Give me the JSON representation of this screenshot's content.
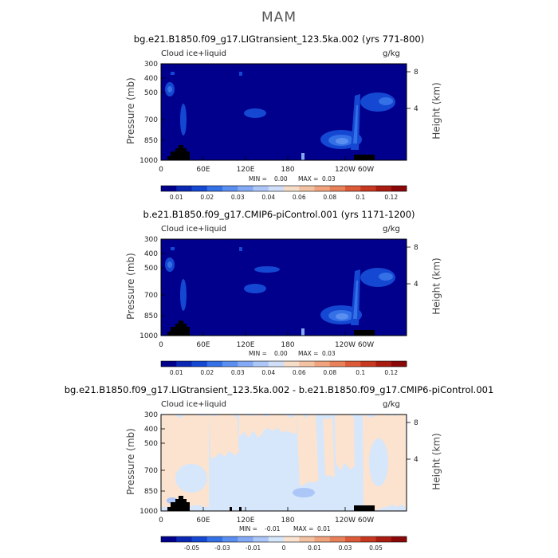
{
  "figure": {
    "title": "MAM"
  },
  "colors": {
    "background": "#00008c",
    "background_diff": "#d6e6fb",
    "land": "#000000"
  },
  "chart_data": [
    {
      "type": "heatmap",
      "title": "bg.e21.B1850.f09_g17.LIGtransient_123.5ka.002 (yrs 771-800)",
      "field_label": "Cloud ice+liquid",
      "units": "g/kg",
      "xlabel": "",
      "ylabel": "Pressure (mb)",
      "ylabel_right": "Height (km)",
      "x_ticks": [
        "0",
        "60E",
        "120E",
        "180",
        "120W",
        "60W"
      ],
      "y_ticks": [
        "300",
        "400",
        "500",
        "700",
        "850",
        "1000"
      ],
      "y_right_ticks": [
        "8",
        "4"
      ],
      "min_label": "MIN =",
      "min_value": "0.00",
      "max_label": "MAX =",
      "max_value": "0.03",
      "colorbar_labels": [
        "0.01",
        "0.02",
        "0.03",
        "0.04",
        "0.06",
        "0.08",
        "0.1",
        "0.12"
      ],
      "colorbar_colors": [
        "#00008c",
        "#0a28b4",
        "#1448d2",
        "#3470e6",
        "#5a8ef0",
        "#85aaf5",
        "#acc6f8",
        "#d0defa",
        "#f5ddc8",
        "#f2c2a2",
        "#f0a37c",
        "#e8805a",
        "#dd5a38",
        "#c83820",
        "#aa1c10",
        "#8c0808"
      ],
      "features": [
        {
          "name": "lower-troposphere-max-east-pacific",
          "lon": -130,
          "p": 860,
          "value": 0.03
        },
        {
          "name": "upper-cloud-east-pacific",
          "lon": -75,
          "p": 430,
          "value": 0.02
        },
        {
          "name": "mid-cloud-africa",
          "lon": 15,
          "p": 520,
          "value": 0.01
        }
      ]
    },
    {
      "type": "heatmap",
      "title": "b.e21.B1850.f09_g17.CMIP6-piControl.001 (yrs 1171-1200)",
      "field_label": "Cloud ice+liquid",
      "units": "g/kg",
      "xlabel": "",
      "ylabel": "Pressure (mb)",
      "ylabel_right": "Height (km)",
      "x_ticks": [
        "0",
        "60E",
        "120E",
        "180",
        "120W",
        "60W"
      ],
      "y_ticks": [
        "300",
        "400",
        "500",
        "700",
        "850",
        "1000"
      ],
      "y_right_ticks": [
        "8",
        "4"
      ],
      "min_label": "MIN =",
      "min_value": "0.00",
      "max_label": "MAX =",
      "max_value": "0.03",
      "colorbar_labels": [
        "0.01",
        "0.02",
        "0.03",
        "0.04",
        "0.06",
        "0.08",
        "0.1",
        "0.12"
      ],
      "colorbar_colors": [
        "#00008c",
        "#0a28b4",
        "#1448d2",
        "#3470e6",
        "#5a8ef0",
        "#85aaf5",
        "#acc6f8",
        "#d0defa",
        "#f5ddc8",
        "#f2c2a2",
        "#f0a37c",
        "#e8805a",
        "#dd5a38",
        "#c83820",
        "#aa1c10",
        "#8c0808"
      ],
      "features": [
        {
          "name": "lower-troposphere-max-east-pacific",
          "lon": -130,
          "p": 860,
          "value": 0.03
        },
        {
          "name": "upper-cloud-east-pacific",
          "lon": -75,
          "p": 430,
          "value": 0.02
        },
        {
          "name": "mid-cloud-africa",
          "lon": 15,
          "p": 520,
          "value": 0.01
        }
      ]
    },
    {
      "type": "heatmap",
      "title": "bg.e21.B1850.f09_g17.LIGtransient_123.5ka.002 - b.e21.B1850.f09_g17.CMIP6-piControl.001",
      "field_label": "Cloud ice+liquid",
      "units": "g/kg",
      "xlabel": "",
      "ylabel": "Pressure (mb)",
      "ylabel_right": "Height (km)",
      "x_ticks": [
        "0",
        "60E",
        "120E",
        "180",
        "120W",
        "60W"
      ],
      "y_ticks": [
        "300",
        "400",
        "500",
        "700",
        "850",
        "1000"
      ],
      "y_right_ticks": [
        "8",
        "4"
      ],
      "min_label": "MIN =",
      "min_value": "-0.01",
      "max_label": "MAX =",
      "max_value": "0.01",
      "colorbar_labels": [
        "-0.05",
        "-0.03",
        "-0.01",
        "0",
        "0.01",
        "0.03",
        "0.05"
      ],
      "colorbar_colors": [
        "#00008c",
        "#0a28b4",
        "#1448d2",
        "#3470e6",
        "#5a8ef0",
        "#85aaf5",
        "#acc6f8",
        "#d6e6fb",
        "#fbe3d0",
        "#f2c2a2",
        "#f0a37c",
        "#e8805a",
        "#dd5a38",
        "#c83820",
        "#aa1c10",
        "#8c0808"
      ],
      "features": [
        {
          "name": "positive-anomaly-band",
          "lon": 60,
          "p": 550,
          "value": 0.01
        },
        {
          "name": "negative-anomaly-central-pacific",
          "lon": 180,
          "p": 600,
          "value": -0.01
        }
      ]
    }
  ]
}
